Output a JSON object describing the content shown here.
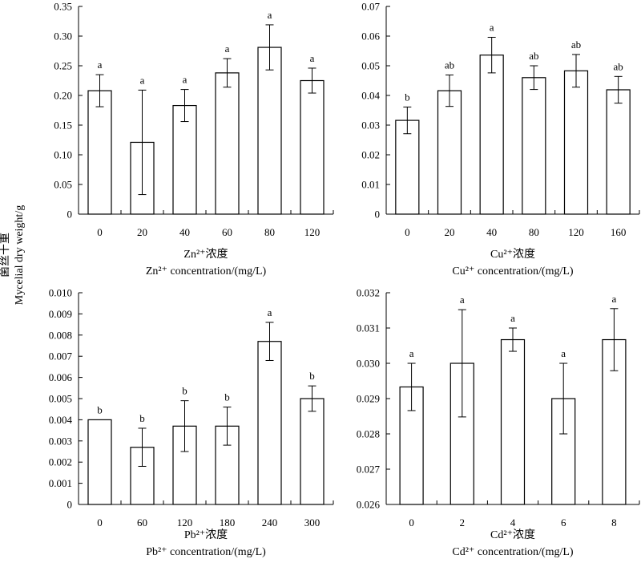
{
  "figure": {
    "ylabel_cn": "菌丝干重",
    "ylabel_en": "Mycelial dry weight/g"
  },
  "chart_data": [
    {
      "type": "bar",
      "id": "zn",
      "xlabel_cn": "Zn²⁺浓度",
      "xlabel_en": "Zn²⁺ concentration/(mg/L)",
      "categories": [
        "0",
        "20",
        "40",
        "60",
        "80",
        "120"
      ],
      "values": [
        0.208,
        0.121,
        0.183,
        0.238,
        0.281,
        0.225
      ],
      "errors": [
        0.027,
        0.088,
        0.027,
        0.024,
        0.038,
        0.021
      ],
      "labels": [
        "a",
        "a",
        "a",
        "a",
        "a",
        "a"
      ],
      "ylim": [
        0,
        0.35
      ],
      "yticks": [
        "0",
        "0.05",
        "0.10",
        "0.15",
        "0.20",
        "0.25",
        "0.30",
        "0.35"
      ]
    },
    {
      "type": "bar",
      "id": "cu",
      "xlabel_cn": "Cu²⁺浓度",
      "xlabel_en": "Cu²⁺ concentration/(mg/L)",
      "categories": [
        "0",
        "20",
        "40",
        "80",
        "120",
        "160"
      ],
      "values": [
        0.0316,
        0.0416,
        0.0536,
        0.046,
        0.0483,
        0.0419
      ],
      "errors": [
        0.0045,
        0.0053,
        0.006,
        0.004,
        0.0055,
        0.0045
      ],
      "labels": [
        "b",
        "ab",
        "a",
        "ab",
        "ab",
        "ab"
      ],
      "ylim": [
        0,
        0.07
      ],
      "yticks": [
        "0",
        "0.01",
        "0.02",
        "0.03",
        "0.04",
        "0.05",
        "0.06",
        "0.07"
      ]
    },
    {
      "type": "bar",
      "id": "pb",
      "xlabel_cn": "Pb²⁺浓度",
      "xlabel_en": "Pb²⁺ concentration/(mg/L)",
      "categories": [
        "0",
        "60",
        "120",
        "180",
        "240",
        "300"
      ],
      "values": [
        0.004,
        0.0027,
        0.0037,
        0.0037,
        0.0077,
        0.005
      ],
      "errors": [
        0,
        0.0009,
        0.0012,
        0.0009,
        0.0009,
        0.0006
      ],
      "labels": [
        "b",
        "b",
        "b",
        "b",
        "a",
        "b"
      ],
      "ylim": [
        0,
        0.01
      ],
      "yticks": [
        "0",
        "0.001",
        "0.002",
        "0.003",
        "0.004",
        "0.005",
        "0.006",
        "0.007",
        "0.008",
        "0.009",
        "0.010"
      ]
    },
    {
      "type": "bar",
      "id": "cd",
      "xlabel_cn": "Cd²⁺浓度",
      "xlabel_en": "Cd²⁺ concentration/(mg/L)",
      "categories": [
        "0",
        "2",
        "4",
        "6",
        "8"
      ],
      "values": [
        0.02933,
        0.03,
        0.03067,
        0.029,
        0.03067
      ],
      "errors": [
        0.00067,
        0.00152,
        0.00033,
        0.001,
        0.00088
      ],
      "labels": [
        "a",
        "a",
        "a",
        "a",
        "a"
      ],
      "ylim": [
        0.026,
        0.032
      ],
      "yticks": [
        "0.026",
        "0.027",
        "0.028",
        "0.029",
        "0.030",
        "0.031",
        "0.032"
      ]
    }
  ]
}
